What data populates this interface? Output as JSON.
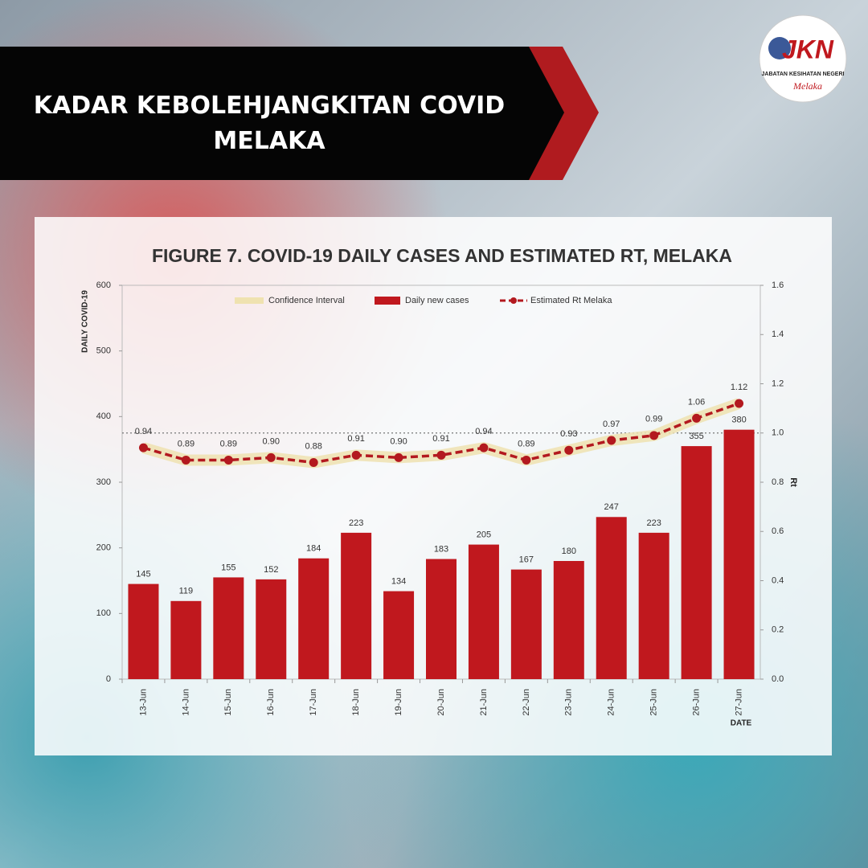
{
  "header": {
    "title": "KADAR KEBOLEHJANGKITAN COVID MELAKA"
  },
  "logo": {
    "mark": "JKN",
    "name": "JABATAN KESIHATAN NEGERI",
    "state": "Melaka"
  },
  "chart_data": {
    "type": "bar",
    "title": "FIGURE 7. COVID-19 DAILY CASES AND ESTIMATED RT, MELAKA",
    "y_label": "DAILY COVID-19",
    "y2_label": "Rt",
    "x_label": "DATE",
    "band_name": "Confidence Interval",
    "band_color": "#efe2b0",
    "categories": [
      "13-Jun",
      "14-Jun",
      "15-Jun",
      "16-Jun",
      "17-Jun",
      "18-Jun",
      "19-Jun",
      "20-Jun",
      "21-Jun",
      "22-Jun",
      "23-Jun",
      "24-Jun",
      "25-Jun",
      "26-Jun",
      "27-Jun"
    ],
    "series": [
      {
        "name": "Daily new cases",
        "color": "#c0181e",
        "values": [
          145,
          119,
          155,
          152,
          184,
          223,
          134,
          183,
          205,
          167,
          180,
          247,
          223,
          355,
          380
        ]
      },
      {
        "name": "Estimated Rt Melaka",
        "color": "#b3191f",
        "axis": "y2",
        "type": "line",
        "values": [
          0.94,
          0.89,
          0.89,
          0.9,
          0.88,
          0.91,
          0.9,
          0.91,
          0.94,
          0.89,
          0.93,
          0.97,
          0.99,
          1.06,
          1.12
        ],
        "value_labels": [
          "0.94",
          "0.89",
          "0.89",
          "0.90",
          "0.88",
          "0.91",
          "0.90",
          "0.91",
          "0.94",
          "0.89",
          "0.93",
          "0.97",
          "0.99",
          "1.06",
          "1.12"
        ]
      }
    ],
    "ylim": [
      0,
      600
    ],
    "yticks": [
      0,
      100,
      200,
      300,
      400,
      500,
      600
    ],
    "y2lim": [
      0,
      1.6
    ],
    "y2ticks": [
      {
        "value": 0,
        "label": "0.0"
      },
      0.2,
      0.4,
      0.6,
      0.8,
      {
        "value": 1,
        "label": "1.0"
      },
      1.2,
      1.4,
      1.6
    ],
    "reference_line": {
      "value": 1,
      "label": "1.0"
    }
  }
}
